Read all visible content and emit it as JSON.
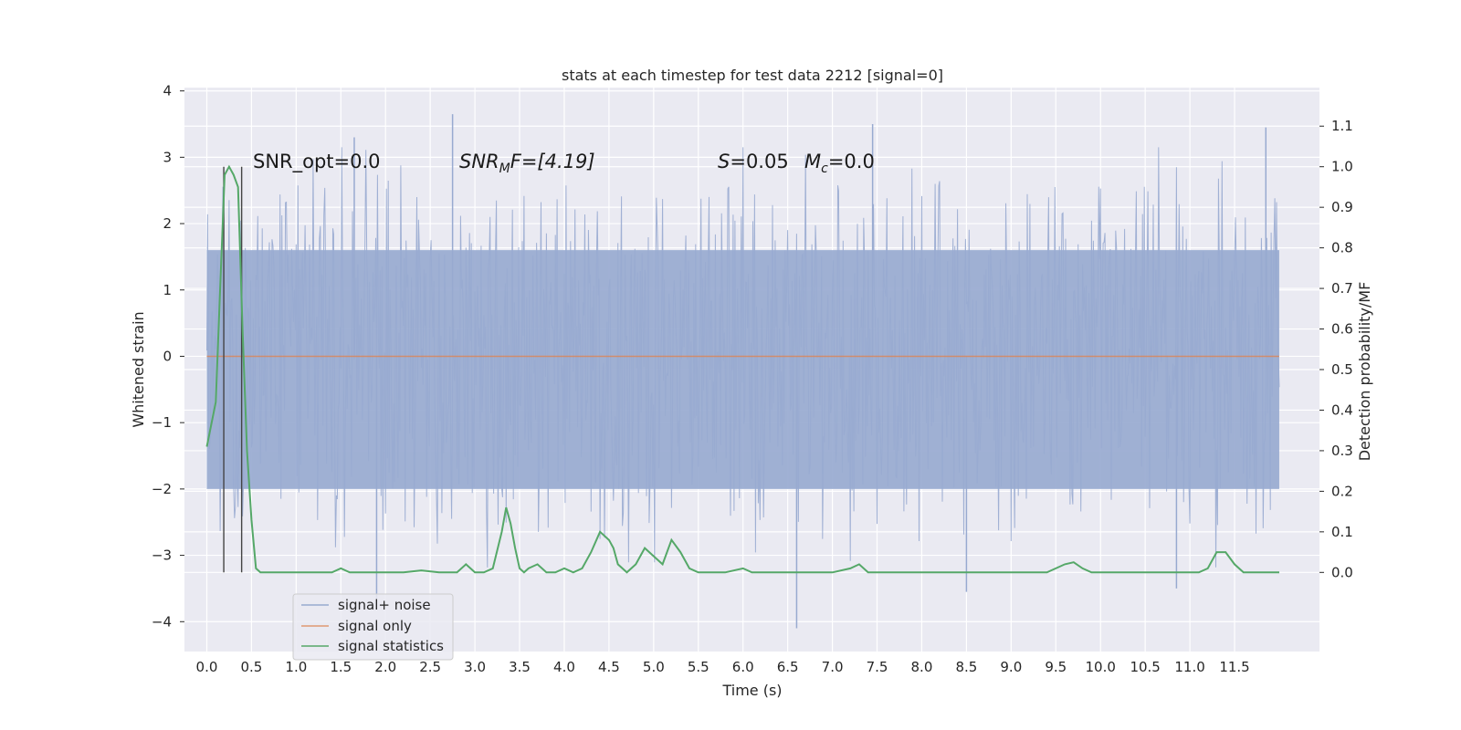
{
  "chart_data": {
    "type": "line",
    "title": "stats at each timestep for test data 2212 [signal=0]",
    "xlabel": "Time (s)",
    "ylabel": "Whitened strain",
    "y2label": "Detection probability/MF",
    "xlim": [
      -0.25,
      12.45
    ],
    "ylim": [
      -4.45,
      4.05
    ],
    "y2lim": [
      -0.195,
      1.195
    ],
    "xticks": [
      "0.0",
      "0.5",
      "1.0",
      "1.5",
      "2.0",
      "2.5",
      "3.0",
      "3.5",
      "4.0",
      "4.5",
      "5.0",
      "5.5",
      "6.0",
      "6.5",
      "7.0",
      "7.5",
      "8.0",
      "8.5",
      "9.0",
      "9.5",
      "10.0",
      "10.5",
      "11.0",
      "11.5"
    ],
    "yticks": [
      "4",
      "3",
      "2",
      "1",
      "0",
      "−1",
      "−2",
      "−3",
      "−4"
    ],
    "y2ticks": [
      "1.1",
      "1.0",
      "0.9",
      "0.8",
      "0.7",
      "0.6",
      "0.5",
      "0.4",
      "0.3",
      "0.2",
      "0.1",
      "0.0"
    ],
    "grid": true,
    "legend_position": "lower-left",
    "annotations": {
      "snr_opt": "SNR_opt=0.0",
      "snr_mf_name": "SNR",
      "snr_mf_sub": "M",
      "snr_mf_rest": "F=[4.19]",
      "s_name": "S",
      "s_rest": "=0.05",
      "mc_name": "M",
      "mc_sub": "c",
      "mc_rest": "=0.0"
    },
    "vlines_x": [
      0.19,
      0.39
    ],
    "series": [
      {
        "name": "signal+ noise",
        "color": "#98aad0",
        "x_start": 0.0,
        "x_end": 12.0,
        "band": [
          -2.0,
          1.6
        ],
        "notable_peaks": [
          {
            "x": 2.75,
            "y": 3.65
          },
          {
            "x": 1.65,
            "y": 3.3
          },
          {
            "x": 7.45,
            "y": 3.5
          },
          {
            "x": 11.85,
            "y": 3.45
          },
          {
            "x": 6.6,
            "y": -4.1
          },
          {
            "x": 1.9,
            "y": -3.65
          },
          {
            "x": 8.5,
            "y": -3.55
          },
          {
            "x": 10.85,
            "y": -3.5
          }
        ]
      },
      {
        "name": "signal only",
        "color": "#dd8452",
        "values_constant": 0.0
      },
      {
        "name": "signal statistics",
        "color": "#55a868",
        "axis": "right",
        "x": [
          0.0,
          0.1,
          0.15,
          0.2,
          0.25,
          0.3,
          0.35,
          0.4,
          0.45,
          0.5,
          0.55,
          0.6,
          0.7,
          0.8,
          1.0,
          1.2,
          1.4,
          1.5,
          1.6,
          1.8,
          2.0,
          2.2,
          2.4,
          2.6,
          2.8,
          2.9,
          3.0,
          3.1,
          3.2,
          3.3,
          3.35,
          3.4,
          3.45,
          3.5,
          3.55,
          3.6,
          3.7,
          3.8,
          3.9,
          4.0,
          4.1,
          4.2,
          4.3,
          4.4,
          4.5,
          4.55,
          4.6,
          4.7,
          4.8,
          4.9,
          5.0,
          5.1,
          5.2,
          5.3,
          5.4,
          5.5,
          5.6,
          5.7,
          5.8,
          6.0,
          6.1,
          6.2,
          6.4,
          6.6,
          6.8,
          7.0,
          7.2,
          7.3,
          7.4,
          7.6,
          7.8,
          8.0,
          9.4,
          9.6,
          9.7,
          9.8,
          9.9,
          10.0,
          10.2,
          10.5,
          10.8,
          11.1,
          11.2,
          11.3,
          11.4,
          11.5,
          11.6,
          11.7,
          11.8,
          11.9,
          12.0
        ],
        "values": [
          0.31,
          0.42,
          0.7,
          0.98,
          1.0,
          0.98,
          0.95,
          0.6,
          0.3,
          0.13,
          0.01,
          0.0,
          0.0,
          0.0,
          0.0,
          0.0,
          0.0,
          0.01,
          0.0,
          0.0,
          0.0,
          0.0,
          0.005,
          0.0,
          0.0,
          0.02,
          0.0,
          0.0,
          0.01,
          0.1,
          0.16,
          0.12,
          0.06,
          0.01,
          0.0,
          0.01,
          0.02,
          0.0,
          0.0,
          0.01,
          0.0,
          0.01,
          0.05,
          0.1,
          0.08,
          0.06,
          0.02,
          0.0,
          0.02,
          0.06,
          0.04,
          0.02,
          0.08,
          0.05,
          0.01,
          0.0,
          0.0,
          0.0,
          0.0,
          0.01,
          0.0,
          0.0,
          0.0,
          0.0,
          0.0,
          0.0,
          0.01,
          0.02,
          0.0,
          0.0,
          0.0,
          0.0,
          0.0,
          0.02,
          0.025,
          0.01,
          0.0,
          0.0,
          0.0,
          0.0,
          0.0,
          0.0,
          0.01,
          0.05,
          0.05,
          0.02,
          0.0,
          0.0,
          0.0,
          0.0,
          0.0
        ]
      }
    ]
  }
}
